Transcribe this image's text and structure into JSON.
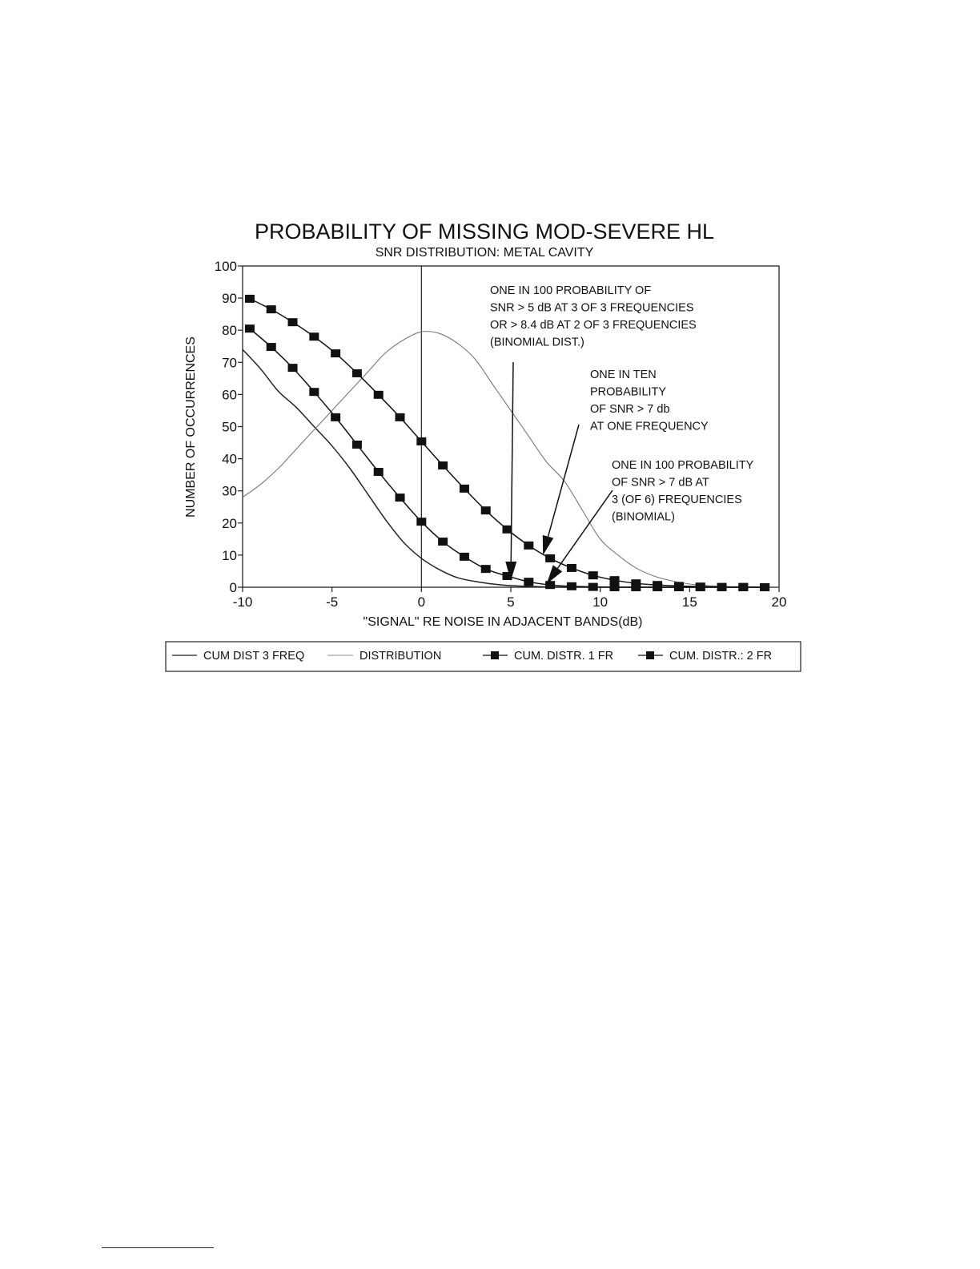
{
  "chart_data": {
    "type": "line",
    "title": "PROBABILITY OF MISSING MOD-SEVERE HL",
    "subtitle": "SNR DISTRIBUTION:  METAL CAVITY",
    "xlabel": "\"SIGNAL\" RE NOISE IN ADJACENT BANDS(dB)",
    "ylabel": "NUMBER OF OCCURRENCES",
    "xlim": [
      -10,
      20
    ],
    "ylim": [
      0,
      100
    ],
    "xticks": [
      -10,
      -5,
      0,
      5,
      10,
      15,
      20
    ],
    "yticks": [
      0,
      10,
      20,
      30,
      40,
      50,
      60,
      70,
      80,
      90,
      100
    ],
    "xtick_labels": [
      "-10",
      "-5",
      "0",
      "5",
      "10",
      "15",
      "20"
    ],
    "ytick_labels": [
      "0",
      "10",
      "20",
      "30",
      "40",
      "50",
      "60",
      "70",
      "80",
      "90",
      "100"
    ],
    "grid": false,
    "reference_line_x": 0,
    "legend_position": "bottom",
    "series": [
      {
        "name": "CUM DIST 3 FREQ",
        "style": "line",
        "color": "#222222",
        "x": [
          -10,
          -9,
          -8,
          -7,
          -6,
          -5,
          -4,
          -3,
          -2,
          -1,
          0,
          1,
          2,
          3,
          4,
          5,
          6,
          7,
          8,
          10,
          20
        ],
        "y": [
          74,
          68,
          61,
          56,
          50,
          44,
          37,
          29,
          21,
          14,
          9,
          5.5,
          3,
          1.8,
          1,
          0.5,
          0.3,
          0.1,
          0,
          0,
          0
        ]
      },
      {
        "name": "DISTRIBUTION",
        "style": "line",
        "color": "#777777",
        "x": [
          -10,
          -9,
          -8,
          -7,
          -6,
          -5,
          -4,
          -3,
          -2,
          -1,
          0,
          1,
          2,
          3,
          4,
          5,
          6,
          7,
          8,
          9,
          10,
          11,
          12,
          13,
          14,
          15,
          16,
          17,
          18,
          20
        ],
        "y": [
          28,
          32,
          37,
          43,
          49,
          55,
          61,
          67,
          73,
          77,
          79.5,
          79,
          76,
          71,
          63,
          55,
          47,
          39,
          33,
          24,
          15,
          10,
          6,
          3.5,
          2,
          1,
          0.5,
          0.2,
          0,
          0
        ]
      },
      {
        "name": "CUM. DISTR. 1 FR",
        "style": "line-square",
        "color": "#111111",
        "x": [
          -9.6,
          -8.4,
          -7.2,
          -6,
          -4.8,
          -3.6,
          -2.4,
          -1.2,
          0,
          1.2,
          2.4,
          3.6,
          4.8,
          6,
          7.2,
          8.4,
          9.6,
          10.8,
          12,
          13.2,
          14.4,
          15.6,
          16.8,
          18,
          19.2
        ],
        "y": [
          89.8,
          86.5,
          82.5,
          78,
          72.8,
          66.6,
          59.9,
          52.9,
          45.4,
          37.9,
          30.7,
          23.9,
          18,
          13,
          9,
          6,
          3.7,
          2.2,
          1.2,
          0.7,
          0.4,
          0.2,
          0.1,
          0.1,
          0
        ]
      },
      {
        "name": "CUM. DISTR.: 2 FR",
        "style": "line-square",
        "color": "#111111",
        "x": [
          -9.6,
          -8.4,
          -7.2,
          -6,
          -4.8,
          -3.6,
          -2.4,
          -1.2,
          0,
          1.2,
          2.4,
          3.6,
          4.8,
          6,
          7.2,
          8.4,
          9.6,
          10.8,
          12,
          13.2,
          14.4,
          15.6,
          16.8,
          18,
          19.2
        ],
        "y": [
          80.5,
          74.8,
          68.3,
          60.8,
          52.9,
          44.4,
          35.9,
          27.9,
          20.4,
          14.2,
          9.5,
          5.7,
          3.5,
          1.7,
          0.7,
          0.3,
          0.1,
          0,
          0,
          0,
          0,
          0,
          0,
          0,
          0
        ]
      }
    ],
    "annotations": [
      {
        "lines": [
          "ONE IN 100 PROBABILITY OF",
          "SNR > 5 dB AT 3 OF 3 FREQUENCIES",
          "OR > 8.4 dB AT 2 OF 3 FREQUENCIES",
          "(BINOMIAL DIST.)"
        ],
        "arrow_to": [
          5,
          2
        ]
      },
      {
        "lines": [
          "ONE IN TEN",
          "PROBABILITY",
          "OF SNR  > 7 db",
          "AT ONE FREQUENCY"
        ],
        "arrow_to": [
          6.8,
          10
        ]
      },
      {
        "lines": [
          "ONE IN 100 PROBABILITY",
          "OF SNR > 7 dB AT",
          "3 (OF 6) FREQUENCIES",
          "(BINOMIAL)"
        ],
        "arrow_to": [
          7,
          1
        ]
      }
    ]
  }
}
